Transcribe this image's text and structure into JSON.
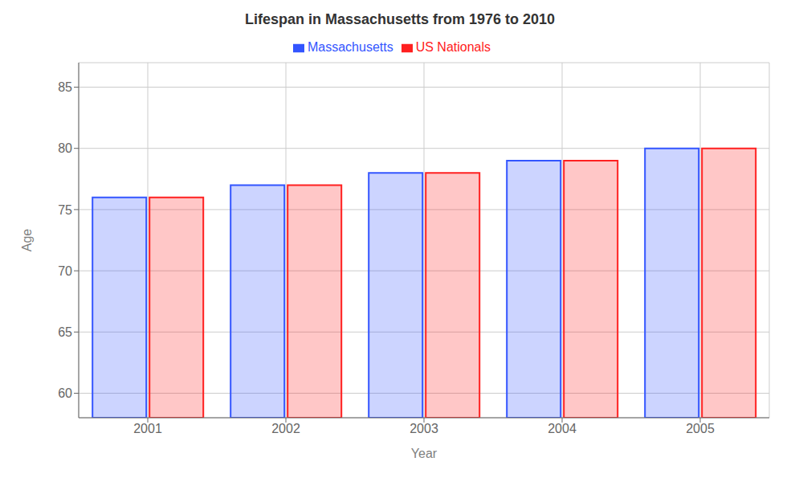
{
  "chart_data": {
    "type": "bar",
    "title": "Lifespan in Massachusetts from 1976 to 2010",
    "xlabel": "Year",
    "ylabel": "Age",
    "categories": [
      "2001",
      "2002",
      "2003",
      "2004",
      "2005"
    ],
    "series": [
      {
        "name": "Massachusetts",
        "color": "#3355ff",
        "values": [
          76.0,
          77.0,
          78.0,
          79.0,
          80.0
        ]
      },
      {
        "name": "US Nationals",
        "color": "#ff2020",
        "values": [
          76.0,
          77.0,
          78.0,
          79.0,
          80.0
        ]
      }
    ],
    "ylim": [
      58,
      87
    ],
    "yticks": [
      60,
      65,
      70,
      75,
      80,
      85
    ],
    "grid": true,
    "legend": "top"
  }
}
